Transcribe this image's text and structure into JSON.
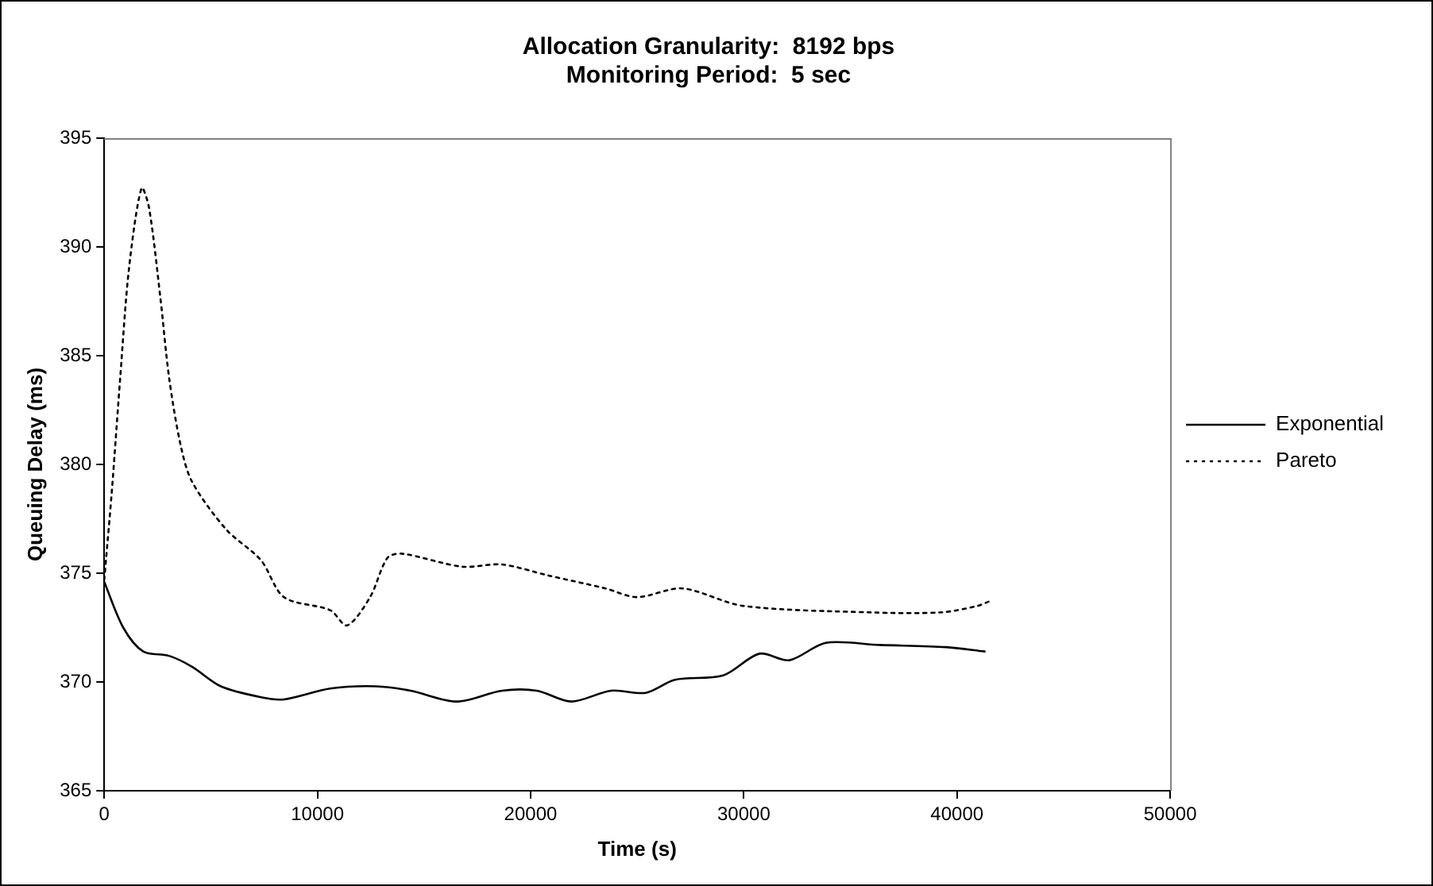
{
  "chart_data": {
    "type": "line",
    "title": [
      "Allocation Granularity:  8192 bps",
      "Monitoring Period:  5 sec"
    ],
    "xlabel": "Time (s)",
    "ylabel": "Queuing Delay (ms)",
    "xlim": [
      0,
      50000
    ],
    "xticks": [
      0,
      10000,
      20000,
      30000,
      40000,
      50000
    ],
    "ylim": [
      365,
      395
    ],
    "yticks": [
      365,
      370,
      375,
      380,
      385,
      390,
      395
    ],
    "grid": false,
    "legend": "right",
    "marker": "none",
    "series": [
      {
        "name": "Exponential",
        "color": "#000000",
        "line_style": "solid",
        "x": [
          0,
          890,
          1830,
          3040,
          4120,
          5470,
          7350,
          8430,
          10600,
          12750,
          14370,
          16520,
          18660,
          20290,
          21900,
          23780,
          25400,
          26770,
          29030,
          30730,
          32140,
          33840,
          36380,
          39480,
          41300
        ],
        "values": [
          374.6,
          372.5,
          371.4,
          371.2,
          370.7,
          369.8,
          369.3,
          369.2,
          369.7,
          369.8,
          369.6,
          369.1,
          369.6,
          369.6,
          369.1,
          369.6,
          369.5,
          370.1,
          370.3,
          371.3,
          371.0,
          371.8,
          371.7,
          371.6,
          371.4
        ]
      },
      {
        "name": "Pareto",
        "color": "#000000",
        "line_style": "dotted",
        "x": [
          0,
          350,
          750,
          1160,
          1750,
          2100,
          2640,
          3040,
          3580,
          4120,
          5730,
          7350,
          8430,
          10600,
          11390,
          12470,
          13280,
          13950,
          16780,
          18660,
          20810,
          23510,
          24980,
          27120,
          29950,
          35880,
          39270,
          40970,
          41500
        ],
        "values": [
          374.7,
          378.7,
          384.0,
          389.0,
          392.7,
          391.8,
          387.6,
          384.0,
          380.9,
          379.2,
          377.0,
          375.6,
          373.9,
          373.3,
          372.6,
          373.9,
          375.7,
          375.9,
          375.3,
          375.4,
          374.9,
          374.3,
          373.9,
          374.3,
          373.5,
          373.2,
          373.2,
          373.5,
          373.7
        ]
      }
    ]
  }
}
